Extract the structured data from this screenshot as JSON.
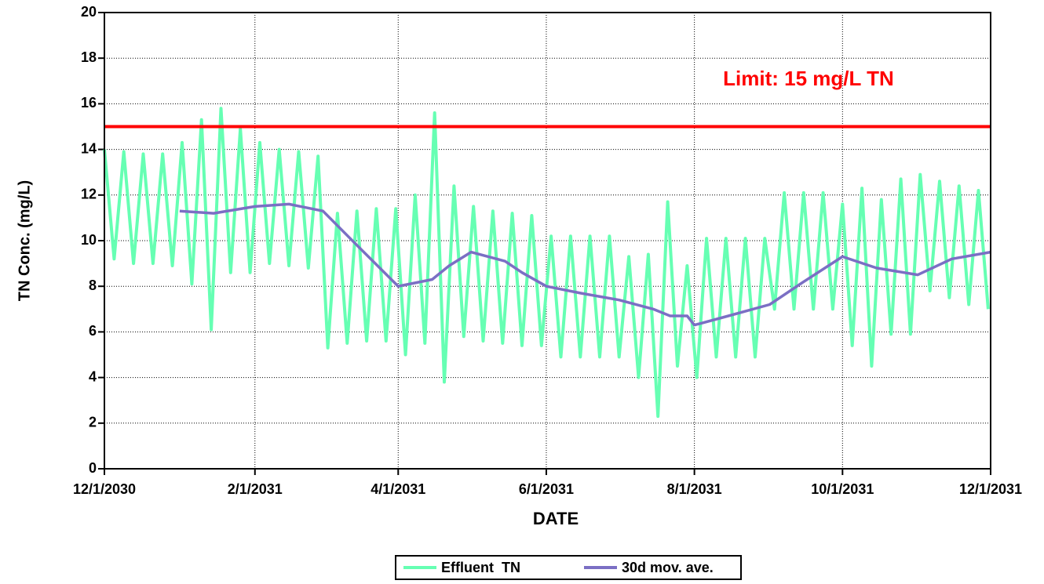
{
  "chart_data": {
    "type": "line",
    "xlabel": "DATE",
    "ylabel": "TN Conc. (mg/L)",
    "xlim": [
      "12/1/2030",
      "12/1/2031"
    ],
    "xticks": [
      "12/1/2030",
      "2/1/2031",
      "4/1/2031",
      "6/1/2031",
      "8/1/2031",
      "10/1/2031",
      "12/1/2031"
    ],
    "ylim": [
      0,
      20
    ],
    "yticks": [
      0,
      2,
      4,
      6,
      8,
      10,
      12,
      14,
      16,
      18,
      20
    ],
    "grid": true,
    "legend": "bottom",
    "hlines": [
      {
        "value": 15,
        "color": "#ff0000",
        "label": "Limit: 15 mg/L TN"
      }
    ],
    "series": [
      {
        "name": "Effluent  TN",
        "color": "#66ffb3",
        "x": [
          "12/1/2030",
          "12/5/2030",
          "12/9/2030",
          "12/13/2030",
          "12/17/2030",
          "12/21/2030",
          "12/25/2030",
          "12/29/2030",
          "1/2/2031",
          "1/6/2031",
          "1/10/2031",
          "1/14/2031",
          "1/18/2031",
          "1/22/2031",
          "1/26/2031",
          "1/30/2031",
          "2/3/2031",
          "2/7/2031",
          "2/11/2031",
          "2/15/2031",
          "2/19/2031",
          "2/23/2031",
          "2/27/2031",
          "3/3/2031",
          "3/7/2031",
          "3/11/2031",
          "3/15/2031",
          "3/19/2031",
          "3/23/2031",
          "3/27/2031",
          "3/31/2031",
          "4/4/2031",
          "4/8/2031",
          "4/12/2031",
          "4/16/2031",
          "4/20/2031",
          "4/24/2031",
          "4/28/2031",
          "5/2/2031",
          "5/6/2031",
          "5/10/2031",
          "5/14/2031",
          "5/18/2031",
          "5/22/2031",
          "5/26/2031",
          "5/30/2031",
          "6/3/2031",
          "6/7/2031",
          "6/11/2031",
          "6/15/2031",
          "6/19/2031",
          "6/23/2031",
          "6/27/2031",
          "7/1/2031",
          "7/5/2031",
          "7/9/2031",
          "7/13/2031",
          "7/17/2031",
          "7/21/2031",
          "7/25/2031",
          "7/29/2031",
          "8/2/2031",
          "8/6/2031",
          "8/10/2031",
          "8/14/2031",
          "8/18/2031",
          "8/22/2031",
          "8/26/2031",
          "8/30/2031",
          "9/3/2031",
          "9/7/2031",
          "9/11/2031",
          "9/15/2031",
          "9/19/2031",
          "9/23/2031",
          "9/27/2031",
          "10/1/2031",
          "10/5/2031",
          "10/9/2031",
          "10/13/2031",
          "10/17/2031",
          "10/21/2031",
          "10/25/2031",
          "10/29/2031",
          "11/2/2031",
          "11/6/2031",
          "11/10/2031",
          "11/14/2031",
          "11/18/2031",
          "11/22/2031",
          "11/26/2031",
          "11/30/2031"
        ],
        "values": [
          14.0,
          9.2,
          13.9,
          9.0,
          13.8,
          9.0,
          13.8,
          8.9,
          14.3,
          8.1,
          15.3,
          6.1,
          15.8,
          8.6,
          14.9,
          8.6,
          14.3,
          9.0,
          14.0,
          8.9,
          13.9,
          8.8,
          13.7,
          5.3,
          11.2,
          5.5,
          11.3,
          5.6,
          11.4,
          5.6,
          11.4,
          5.0,
          12.0,
          5.5,
          15.6,
          3.8,
          12.4,
          5.8,
          11.5,
          5.6,
          11.3,
          5.5,
          11.2,
          5.4,
          11.1,
          5.4,
          10.2,
          4.9,
          10.2,
          4.9,
          10.2,
          4.9,
          10.2,
          4.9,
          9.3,
          4.0,
          9.4,
          2.3,
          11.7,
          4.5,
          8.9,
          4.0,
          10.1,
          4.9,
          10.1,
          4.9,
          10.1,
          4.9,
          10.1,
          7.0,
          12.1,
          7.0,
          12.1,
          7.0,
          12.1,
          7.0,
          11.6,
          5.4,
          12.3,
          4.5,
          11.8,
          5.9,
          12.7,
          5.9,
          12.9,
          7.8,
          12.6,
          7.5,
          12.4,
          7.2,
          12.2,
          7.0
        ]
      },
      {
        "name": "30d mov. ave.",
        "color": "#7b6fc4",
        "x": [
          "1/1/2031",
          "1/15/2031",
          "2/1/2031",
          "2/15/2031",
          "3/1/2031",
          "3/15/2031",
          "4/1/2031",
          "4/15/2031",
          "4/22/2031",
          "5/1/2031",
          "5/15/2031",
          "5/22/2031",
          "6/1/2031",
          "6/15/2031",
          "7/1/2031",
          "7/15/2031",
          "7/22/2031",
          "7/29/2031",
          "8/1/2031",
          "8/15/2031",
          "9/1/2031",
          "9/15/2031",
          "10/1/2031",
          "10/15/2031",
          "11/1/2031",
          "11/15/2031",
          "12/1/2031"
        ],
        "values": [
          11.3,
          11.2,
          11.5,
          11.6,
          11.3,
          9.8,
          8.0,
          8.3,
          8.9,
          9.5,
          9.1,
          8.6,
          8.0,
          7.7,
          7.4,
          7.0,
          6.7,
          6.7,
          6.3,
          6.7,
          7.2,
          8.2,
          9.3,
          8.8,
          8.5,
          9.2,
          9.5
        ]
      }
    ]
  }
}
